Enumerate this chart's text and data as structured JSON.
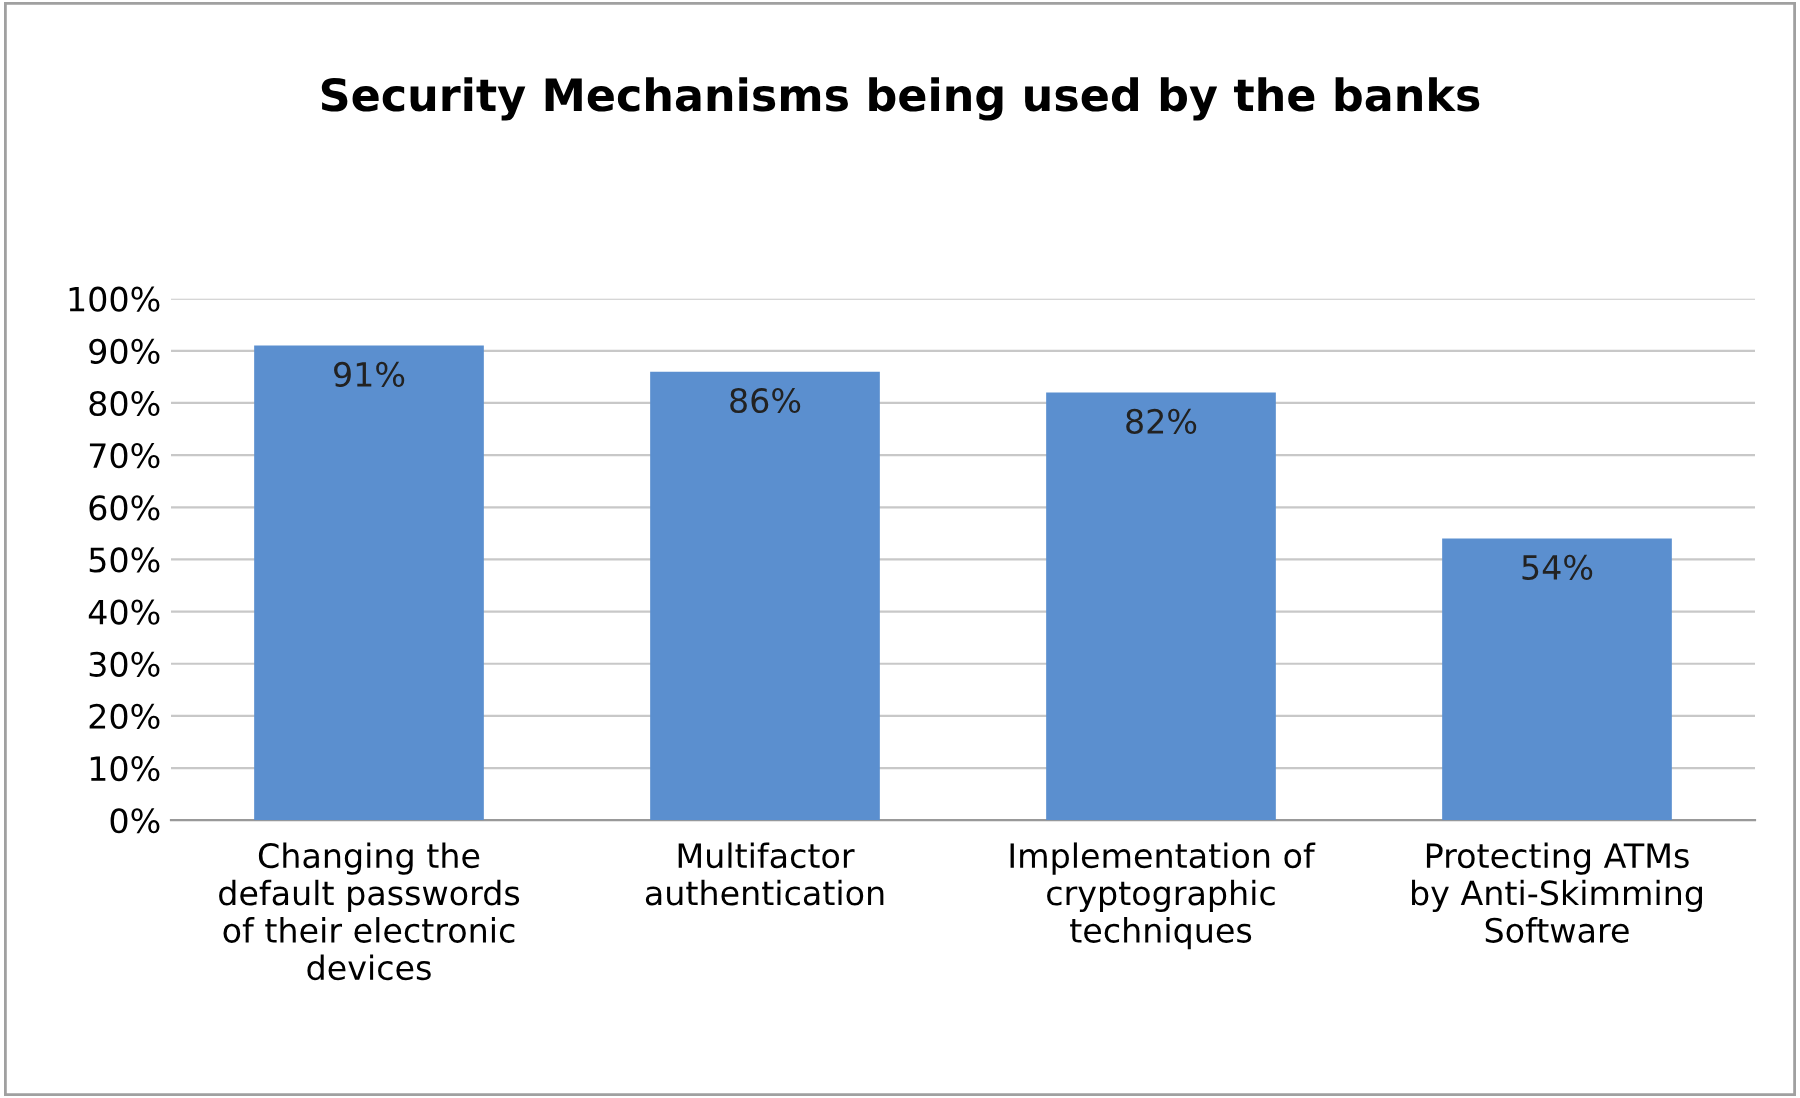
{
  "chart_data": {
    "type": "bar",
    "title": "Security Mechanisms being used by the banks",
    "categories": [
      "Changing the\ndefault passwords\nof their electronic\ndevices",
      "Multifactor\nauthentication",
      "Implementation of\ncryptographic\ntechniques",
      "Protecting ATMs\nby Anti-Skimming\nSoftware"
    ],
    "values": [
      91,
      86,
      82,
      54
    ],
    "color": "#5b8fcf",
    "value_labels": [
      "91%",
      "86%",
      "82%",
      "54%"
    ],
    "ylim": [
      0,
      100
    ],
    "yticks": [
      {
        "value": 0,
        "label": "0%"
      },
      {
        "value": 10,
        "label": "10%"
      },
      {
        "value": 20,
        "label": "20%"
      },
      {
        "value": 30,
        "label": "30%"
      },
      {
        "value": 40,
        "label": "40%"
      },
      {
        "value": 50,
        "label": "50%"
      },
      {
        "value": 60,
        "label": "60%"
      },
      {
        "value": 70,
        "label": "70%"
      },
      {
        "value": 80,
        "label": "80%"
      },
      {
        "value": 90,
        "label": "90%"
      },
      {
        "value": 100,
        "label": "100%"
      }
    ],
    "grid": "y",
    "legend": false
  }
}
